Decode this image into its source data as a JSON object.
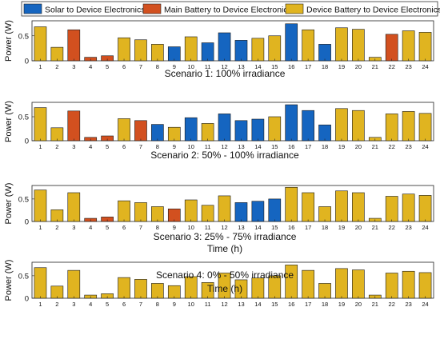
{
  "legend": {
    "placement": "top",
    "items": [
      {
        "label": "Solar to Device Electronics",
        "color": "#1565c0"
      },
      {
        "label": "Main Battery to Device Electronics",
        "color": "#d2501f"
      },
      {
        "label": "Device Battery to Device Electronics",
        "color": "#e0b420"
      }
    ]
  },
  "chart_data": [
    {
      "type": "bar",
      "title": "Scenario 1: 100% irradiance",
      "xlabel": "",
      "ylabel": "Power (W)",
      "ylim": [
        0,
        0.8
      ],
      "yticks": [
        "0",
        "0.5"
      ],
      "grid": false,
      "categories": [
        "1",
        "2",
        "3",
        "4",
        "5",
        "6",
        "7",
        "8",
        "9",
        "10",
        "11",
        "12",
        "13",
        "14",
        "15",
        "16",
        "17",
        "18",
        "19",
        "20",
        "21",
        "22",
        "23",
        "24"
      ],
      "values": [
        0.68,
        0.27,
        0.62,
        0.07,
        0.1,
        0.46,
        0.42,
        0.33,
        0.28,
        0.48,
        0.36,
        0.56,
        0.41,
        0.45,
        0.5,
        0.74,
        0.62,
        0.33,
        0.66,
        0.63,
        0.07,
        0.53,
        0.6,
        0.57
      ],
      "colors": [
        "battery",
        "battery",
        "main",
        "main",
        "main",
        "battery",
        "battery",
        "battery",
        "solar",
        "battery",
        "solar",
        "solar",
        "solar",
        "battery",
        "battery",
        "solar",
        "battery",
        "solar",
        "battery",
        "battery",
        "battery",
        "main",
        "battery",
        "battery"
      ]
    },
    {
      "type": "bar",
      "title": "Scenario 2: 50% - 100% irradiance",
      "xlabel": "",
      "ylabel": "Power (W)",
      "ylim": [
        0,
        0.8
      ],
      "yticks": [
        "0",
        "0.5"
      ],
      "grid": false,
      "categories": [
        "1",
        "2",
        "3",
        "4",
        "5",
        "6",
        "7",
        "8",
        "9",
        "10",
        "11",
        "12",
        "13",
        "14",
        "15",
        "16",
        "17",
        "18",
        "19",
        "20",
        "21",
        "22",
        "23",
        "24"
      ],
      "values": [
        0.69,
        0.27,
        0.62,
        0.07,
        0.1,
        0.46,
        0.42,
        0.34,
        0.28,
        0.48,
        0.36,
        0.56,
        0.42,
        0.45,
        0.5,
        0.75,
        0.63,
        0.33,
        0.67,
        0.63,
        0.07,
        0.56,
        0.61,
        0.57
      ],
      "colors": [
        "battery",
        "battery",
        "main",
        "main",
        "main",
        "battery",
        "main",
        "solar",
        "battery",
        "solar",
        "battery",
        "solar",
        "solar",
        "solar",
        "battery",
        "solar",
        "solar",
        "solar",
        "battery",
        "battery",
        "battery",
        "battery",
        "battery",
        "battery"
      ]
    },
    {
      "type": "bar",
      "title": "Scenario 3: 25% - 75% irradiance",
      "xlabel": "Time (h)",
      "ylabel": "Power (W)",
      "ylim": [
        0,
        0.8
      ],
      "yticks": [
        "0",
        "0.5"
      ],
      "grid": false,
      "categories": [
        "1",
        "2",
        "3",
        "4",
        "5",
        "6",
        "7",
        "8",
        "9",
        "10",
        "11",
        "12",
        "13",
        "14",
        "15",
        "16",
        "17",
        "18",
        "19",
        "20",
        "21",
        "22",
        "23",
        "24"
      ],
      "values": [
        0.7,
        0.26,
        0.64,
        0.07,
        0.1,
        0.46,
        0.42,
        0.33,
        0.28,
        0.48,
        0.36,
        0.57,
        0.42,
        0.45,
        0.5,
        0.76,
        0.64,
        0.33,
        0.68,
        0.64,
        0.07,
        0.56,
        0.61,
        0.58
      ],
      "colors": [
        "battery",
        "battery",
        "battery",
        "main",
        "main",
        "battery",
        "battery",
        "battery",
        "main",
        "battery",
        "battery",
        "battery",
        "solar",
        "solar",
        "solar",
        "battery",
        "battery",
        "battery",
        "battery",
        "battery",
        "battery",
        "battery",
        "battery",
        "battery"
      ]
    },
    {
      "type": "bar",
      "title": "Scenario 4: 0% - 50% irradiance",
      "xlabel": "Time (h)",
      "ylabel": "Power (W)",
      "ylim": [
        0,
        0.8
      ],
      "yticks": [
        "0",
        "0.5"
      ],
      "grid": false,
      "categories": [
        "1",
        "2",
        "3",
        "4",
        "5",
        "6",
        "7",
        "8",
        "9",
        "10",
        "11",
        "12",
        "13",
        "14",
        "15",
        "16",
        "17",
        "18",
        "19",
        "20",
        "21",
        "22",
        "23",
        "24"
      ],
      "values": [
        0.68,
        0.27,
        0.62,
        0.07,
        0.1,
        0.46,
        0.42,
        0.33,
        0.28,
        0.48,
        0.35,
        0.56,
        0.41,
        0.45,
        0.5,
        0.74,
        0.62,
        0.33,
        0.66,
        0.63,
        0.07,
        0.56,
        0.6,
        0.57
      ],
      "colors": [
        "battery",
        "battery",
        "battery",
        "battery",
        "battery",
        "battery",
        "battery",
        "battery",
        "battery",
        "battery",
        "battery",
        "battery",
        "battery",
        "battery",
        "battery",
        "battery",
        "battery",
        "battery",
        "battery",
        "battery",
        "battery",
        "battery",
        "battery",
        "battery"
      ]
    }
  ],
  "series_colors": {
    "solar": "#1565c0",
    "main": "#d2501f",
    "battery": "#e0b420"
  }
}
